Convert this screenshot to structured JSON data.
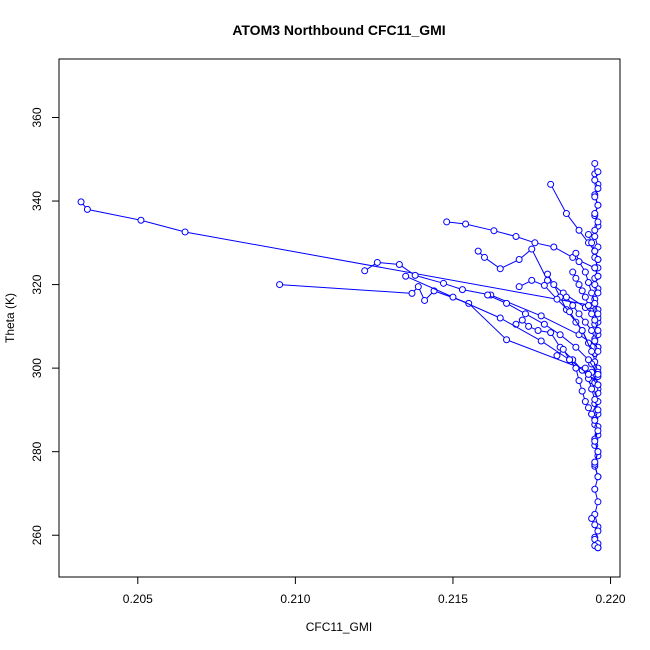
{
  "chart_data": {
    "type": "line",
    "title": "ATOM3 Northbound CFC11_GMI",
    "xlabel": "CFC11_GMI",
    "ylabel": "Theta (K)",
    "xlim": [
      0.2025,
      0.2203
    ],
    "ylim": [
      250,
      374
    ],
    "x_ticks": [
      0.205,
      0.21,
      0.215,
      0.22
    ],
    "x_tick_labels": [
      "0.205",
      "0.210",
      "0.215",
      "0.220"
    ],
    "y_ticks": [
      260,
      280,
      300,
      320,
      340,
      360
    ],
    "y_tick_labels": [
      "260",
      "280",
      "300",
      "320",
      "340",
      "360"
    ],
    "grid": false,
    "marker": "open-circle",
    "color": "#0000ff",
    "series": [
      {
        "x": [
          0.2032,
          0.2034,
          0.2051,
          0.2065,
          0.2194,
          0.2196
        ],
        "y": [
          339.8,
          338.0,
          335.4,
          332.6,
          315.0,
          311.0
        ]
      },
      {
        "x": [
          0.2095,
          0.2137,
          0.2139,
          0.2141,
          0.2144,
          0.2155,
          0.2167,
          0.2194,
          0.2196
        ],
        "y": [
          320.0,
          317.9,
          319.5,
          316.2,
          318.5,
          315.5,
          306.8,
          299.0,
          296.0
        ]
      },
      {
        "x": [
          0.2122,
          0.2126,
          0.2133,
          0.2138,
          0.2147,
          0.2153,
          0.2162,
          0.2178,
          0.219,
          0.2196
        ],
        "y": [
          323.3,
          325.3,
          324.8,
          322.2,
          320.3,
          318.8,
          317.5,
          312.5,
          308.0,
          305.0
        ]
      },
      {
        "x": [
          0.2148,
          0.2154,
          0.2163,
          0.217,
          0.2176,
          0.2182,
          0.2188,
          0.2195,
          0.2196
        ],
        "y": [
          335.0,
          334.5,
          332.9,
          331.5,
          330.0,
          329.0,
          326.5,
          324.0,
          322.0
        ]
      },
      {
        "x": [
          0.2181,
          0.2186,
          0.219,
          0.2193,
          0.2195,
          0.2196
        ],
        "y": [
          344.0,
          337.0,
          333.0,
          330.0,
          328.0,
          326.0
        ]
      },
      {
        "x": [
          0.2158,
          0.216,
          0.2165,
          0.2171,
          0.2175,
          0.218,
          0.2185,
          0.2192,
          0.2196
        ],
        "y": [
          328.0,
          326.5,
          323.8,
          326.0,
          328.5,
          321.0,
          318.0,
          314.5,
          312.0
        ]
      },
      {
        "x": [
          0.217,
          0.2172,
          0.2174,
          0.2177,
          0.2181,
          0.2184,
          0.2188,
          0.2191,
          0.2194,
          0.2196
        ],
        "y": [
          310.5,
          311.5,
          310.0,
          309.0,
          308.5,
          305.0,
          302.0,
          299.5,
          297.0,
          295.0
        ]
      },
      {
        "x": [
          0.2186,
          0.2188,
          0.219,
          0.2192,
          0.2194,
          0.2195,
          0.2196
        ],
        "y": [
          317.0,
          315.0,
          313.0,
          311.0,
          309.0,
          307.0,
          305.0
        ]
      },
      {
        "x": [
          0.2183,
          0.2185,
          0.2187,
          0.2189,
          0.219,
          0.2191,
          0.2192,
          0.2193,
          0.2194,
          0.2195
        ],
        "y": [
          303.0,
          304.5,
          302.0,
          300.0,
          297.0,
          294.5,
          292.0,
          290.5,
          289.0,
          288.0
        ]
      },
      {
        "x": [
          0.2188,
          0.2189,
          0.219,
          0.2191,
          0.2192,
          0.2193,
          0.2194,
          0.2195,
          0.2196
        ],
        "y": [
          323.0,
          321.5,
          320.0,
          318.5,
          317.0,
          315.0,
          313.0,
          310.5,
          308.0
        ]
      },
      {
        "x": [
          0.218,
          0.2182,
          0.2184,
          0.2186,
          0.2189,
          0.2191,
          0.2193,
          0.2195
        ],
        "y": [
          322.5,
          320.0,
          317.0,
          314.0,
          311.0,
          309.0,
          306.0,
          303.5
        ]
      },
      {
        "x": [
          0.2171,
          0.2175,
          0.2179,
          0.2183,
          0.2187,
          0.2191,
          0.2194,
          0.2196
        ],
        "y": [
          319.5,
          321.0,
          319.8,
          316.5,
          313.5,
          309.0,
          304.0,
          300.0
        ]
      },
      {
        "x": [
          0.2195,
          0.2195,
          0.2196,
          0.2195,
          0.2196,
          0.2195,
          0.2196,
          0.2195,
          0.2196,
          0.2195,
          0.2196,
          0.2195,
          0.2196,
          0.2195,
          0.2196,
          0.2195,
          0.2196,
          0.2195,
          0.2196,
          0.2195,
          0.2196,
          0.2195,
          0.2196,
          0.2195,
          0.2196,
          0.2195,
          0.2196,
          0.2195,
          0.2196,
          0.2195,
          0.2196
        ],
        "y": [
          349.0,
          346.5,
          344.0,
          341.5,
          339.0,
          336.5,
          334.0,
          331.5,
          329.0,
          326.5,
          324.0,
          321.5,
          319.0,
          316.5,
          314.0,
          311.5,
          309.0,
          306.5,
          304.0,
          301.5,
          299.0,
          296.5,
          294.0,
          291.5,
          289.0,
          286.5,
          284.0,
          281.5,
          279.0,
          276.5,
          274.0
        ]
      },
      {
        "x": [
          0.2194,
          0.2196,
          0.2195,
          0.2196,
          0.2194,
          0.2196,
          0.2195,
          0.2196,
          0.2195,
          0.2196,
          0.2195,
          0.2196,
          0.2195,
          0.2196,
          0.2195,
          0.2196
        ],
        "y": [
          301.0,
          298.0,
          295.0,
          292.0,
          289.0,
          286.0,
          283.0,
          280.0,
          277.0,
          274.0,
          271.0,
          268.0,
          265.0,
          262.0,
          259.5,
          257.0
        ]
      },
      {
        "x": [
          0.2192,
          0.2193,
          0.2194,
          0.2195,
          0.2196,
          0.2195,
          0.2196,
          0.2195,
          0.2196,
          0.2195
        ],
        "y": [
          300.0,
          297.5,
          295.0,
          292.5,
          290.0,
          287.5,
          285.0,
          282.5,
          280.0,
          277.5
        ]
      },
      {
        "x": [
          0.2193,
          0.2194,
          0.2195,
          0.2196,
          0.2195,
          0.2196,
          0.2195,
          0.2196
        ],
        "y": [
          332.0,
          330.0,
          328.0,
          326.0,
          324.0,
          322.0,
          320.0,
          318.0
        ]
      },
      {
        "x": [
          0.2189,
          0.219,
          0.2192,
          0.2193,
          0.2194,
          0.2195,
          0.2196
        ],
        "y": [
          327.5,
          325.5,
          323.0,
          320.5,
          318.0,
          315.5,
          313.0
        ]
      },
      {
        "x": [
          0.2196,
          0.2195,
          0.2196,
          0.2195,
          0.2196,
          0.2195,
          0.2196,
          0.2195
        ],
        "y": [
          347.0,
          345.0,
          343.0,
          341.0,
          339.0,
          337.0,
          335.0,
          333.0
        ]
      },
      {
        "x": [
          0.2194,
          0.2195,
          0.2196,
          0.2195,
          0.2196,
          0.2195,
          0.2196
        ],
        "y": [
          264.0,
          262.5,
          261.0,
          259.0,
          258.0,
          257.5,
          257.0
        ]
      },
      {
        "x": [
          0.2161,
          0.2167,
          0.2173,
          0.2179,
          0.2184,
          0.2189,
          0.2193,
          0.2196
        ],
        "y": [
          317.5,
          315.5,
          313.0,
          310.5,
          308.0,
          305.0,
          302.0,
          298.5
        ]
      },
      {
        "x": [
          0.2135,
          0.215,
          0.2165,
          0.2178,
          0.2187,
          0.2193,
          0.2196
        ],
        "y": [
          322.0,
          317.0,
          312.0,
          306.5,
          302.0,
          298.5,
          296.0
        ]
      }
    ]
  }
}
